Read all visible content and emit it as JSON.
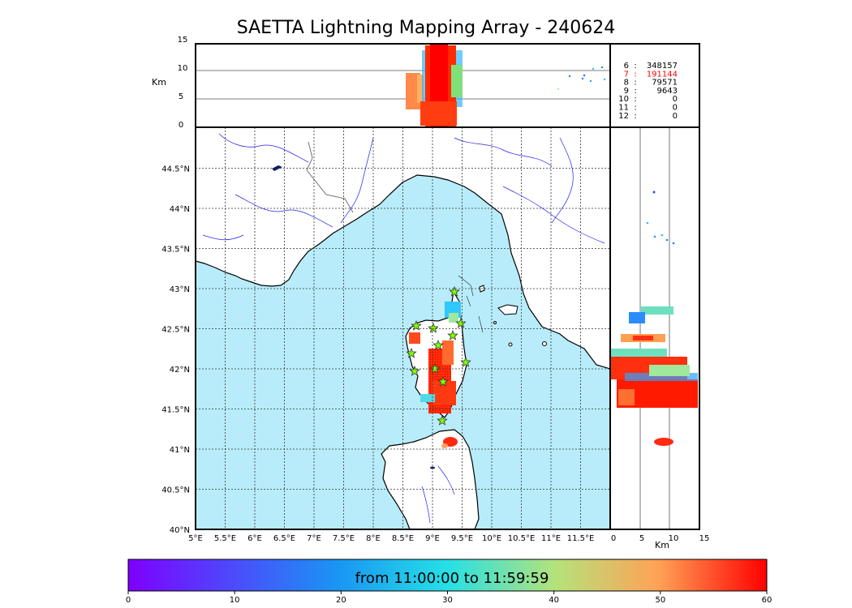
{
  "title": "SAETTA Lightning Mapping Array - 240624",
  "altitude_panel": {
    "ylabel": "Km",
    "ticks": [
      "0",
      "5",
      "10",
      "15"
    ]
  },
  "right_panel": {
    "xlabel": "Km",
    "ticks": [
      "0",
      "5",
      "10",
      "15"
    ]
  },
  "map": {
    "lat_ticks": [
      "40°N",
      "40.5°N",
      "41°N",
      "41.5°N",
      "42°N",
      "42.5°N",
      "43°N",
      "43.5°N",
      "44°N",
      "44.5°N"
    ],
    "lon_ticks": [
      "5°E",
      "5.5°E",
      "6°E",
      "6.5°E",
      "7°E",
      "7.5°E",
      "8°E",
      "8.5°E",
      "9°E",
      "9.5°E",
      "10°E",
      "10.5°E",
      "11°E",
      "11.5°E"
    ],
    "land_color": "#ffffff",
    "sea_color": "#b8ecfa",
    "station_marker": "star",
    "station_color": "#7fff00"
  },
  "station_counts": [
    {
      "stations": "6",
      "count": "348157",
      "color": "#000000"
    },
    {
      "stations": "7",
      "count": "191144",
      "color": "#ff0000"
    },
    {
      "stations": "8",
      "count": "79571",
      "color": "#000000"
    },
    {
      "stations": "9",
      "count": "9643",
      "color": "#000000"
    },
    {
      "stations": "10",
      "count": "0",
      "color": "#000000"
    },
    {
      "stations": "11",
      "count": "0",
      "color": "#000000"
    },
    {
      "stations": "12",
      "count": "0",
      "color": "#000000"
    }
  ],
  "colorbar": {
    "label": "from 11:00:00 to 11:59:59",
    "ticks": [
      "0",
      "10",
      "20",
      "30",
      "40",
      "50",
      "60"
    ],
    "range": [
      0,
      60
    ],
    "colormap": "rainbow"
  }
}
